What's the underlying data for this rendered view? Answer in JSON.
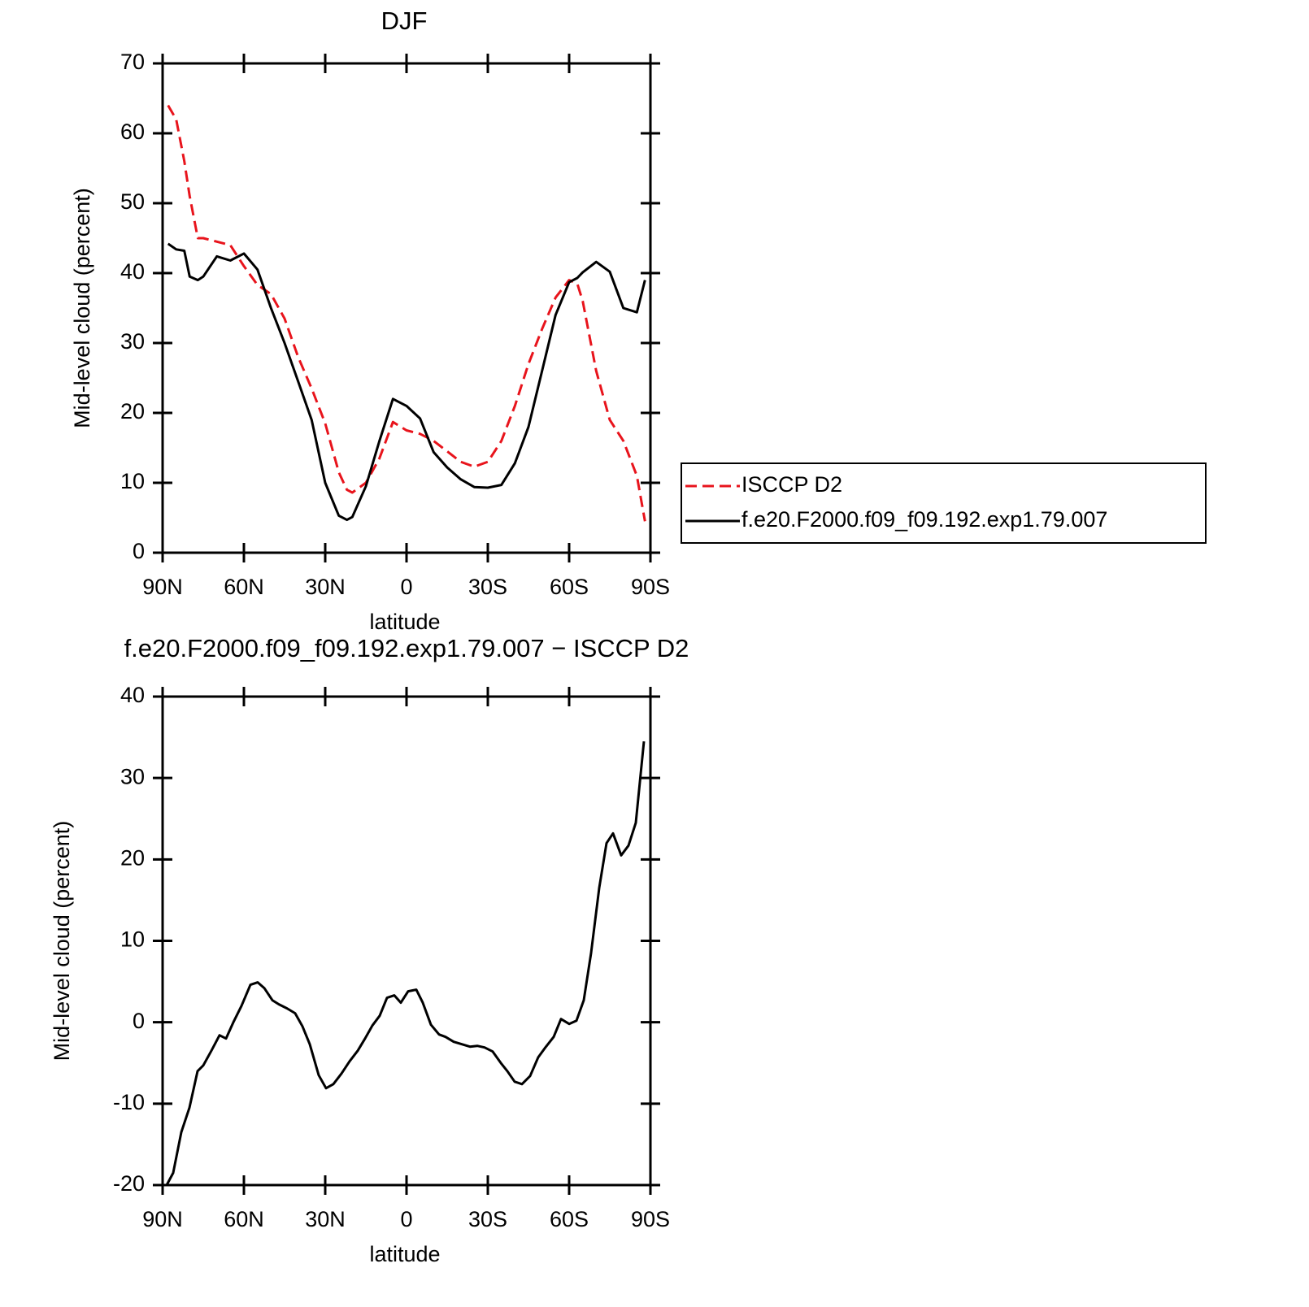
{
  "chart_data": [
    {
      "type": "line",
      "title": "DJF",
      "xlabel": "latitude",
      "ylabel": "Mid-level cloud (percent)",
      "x": [
        88,
        85,
        82,
        80,
        77,
        75,
        70,
        65,
        60,
        55,
        50,
        45,
        40,
        35,
        30,
        25,
        22,
        20,
        15,
        10,
        5,
        0,
        -5,
        -10,
        -15,
        -20,
        -25,
        -30,
        -35,
        -40,
        -45,
        -50,
        -55,
        -60,
        -63,
        -65,
        -70,
        -75,
        -80,
        -85,
        -88
      ],
      "series": [
        {
          "name": "ISCCP D2",
          "color": "#e8141c",
          "linestyle": "dashed",
          "values": [
            64,
            62,
            56,
            51,
            45,
            45,
            44.5,
            44,
            41,
            38.3,
            37,
            33.5,
            28,
            23.5,
            18.5,
            11.5,
            9,
            8.6,
            10,
            13.5,
            18.7,
            17.5,
            17,
            16,
            14.5,
            13,
            12.3,
            13,
            16,
            21,
            27,
            32,
            36.5,
            39,
            38.5,
            36,
            26,
            19,
            16,
            11,
            4.5
          ]
        },
        {
          "name": "f.e20.F2000.f09_f09.192.exp1.79.007",
          "color": "#000000",
          "linestyle": "solid",
          "values": [
            44.2,
            43.4,
            43.2,
            39.5,
            39,
            39.5,
            42.4,
            41.8,
            42.8,
            40.5,
            35,
            30,
            24.5,
            19,
            10,
            5.3,
            4.7,
            5.1,
            9.5,
            16,
            22,
            21,
            19.2,
            14.4,
            12.2,
            10.5,
            9.4,
            9.3,
            9.7,
            12.8,
            18,
            26,
            34,
            38.7,
            39.3,
            40.1,
            41.6,
            40.2,
            35,
            34.4,
            39
          ]
        }
      ],
      "xlim": [
        90,
        -90
      ],
      "xticks": [
        {
          "value": 90,
          "label": "90N"
        },
        {
          "value": 60,
          "label": "60N"
        },
        {
          "value": 30,
          "label": "30N"
        },
        0,
        {
          "value": -30,
          "label": "30S"
        },
        {
          "value": -60,
          "label": "60S"
        },
        {
          "value": -90,
          "label": "90S"
        }
      ],
      "ylim": [
        0,
        70
      ],
      "yticks": [
        0,
        10,
        20,
        30,
        40,
        50,
        60,
        70
      ],
      "legend": "right"
    },
    {
      "type": "line",
      "title": "f.e20.F2000.f09_f09.192.exp1.79.007 − ISCCP D2",
      "xlabel": "latitude",
      "ylabel": "Mid-level cloud (percent)",
      "x": [
        88.5,
        86.1,
        83.1,
        80.1,
        77.1,
        75,
        72,
        69,
        66.6,
        63.9,
        60.9,
        57.6,
        54.9,
        52.5,
        49.5,
        47.1,
        44.1,
        41.1,
        38.4,
        35.7,
        32.4,
        29.7,
        27,
        24,
        21,
        18,
        15.3,
        12.6,
        9.9,
        7.2,
        4.5,
        2.1,
        -0.6,
        -3.6,
        -6,
        -9,
        -12,
        -14.4,
        -17.4,
        -20.4,
        -23.4,
        -26.1,
        -28.8,
        -31.8,
        -34.8,
        -37.2,
        -39.9,
        -42.6,
        -45.6,
        -48.6,
        -51,
        -54.3,
        -57,
        -60,
        -62.7,
        -65.4,
        -68.1,
        -71.1,
        -73.8,
        -76.2,
        -79.2,
        -81.9,
        -84.6,
        -87.6
      ],
      "series": [
        {
          "color": "#000000",
          "linestyle": "solid",
          "values": [
            -20,
            -18.5,
            -13.5,
            -10.5,
            -6,
            -5.3,
            -3.5,
            -1.6,
            -2,
            0,
            2,
            4.6,
            4.9,
            4.2,
            2.7,
            2.2,
            1.7,
            1.1,
            -0.5,
            -2.7,
            -6.5,
            -8.1,
            -7.6,
            -6.3,
            -4.8,
            -3.5,
            -2,
            -0.4,
            0.8,
            3,
            3.3,
            2.4,
            3.8,
            4,
            2.4,
            -0.3,
            -1.5,
            -1.8,
            -2.4,
            -2.7,
            -3,
            -2.9,
            -3.1,
            -3.6,
            -5,
            -6,
            -7.3,
            -7.6,
            -6.6,
            -4.3,
            -3.2,
            -1.8,
            0.4,
            -0.2,
            0.2,
            2.7,
            8.5,
            16.5,
            22,
            23.2,
            20.5,
            21.7,
            24.5,
            34.5
          ]
        }
      ],
      "xlim": [
        90,
        -90
      ],
      "xticks": [
        {
          "value": 90,
          "label": "90N"
        },
        {
          "value": 60,
          "label": "60N"
        },
        {
          "value": 30,
          "label": "30N"
        },
        0,
        {
          "value": -30,
          "label": "30S"
        },
        {
          "value": -60,
          "label": "60S"
        },
        {
          "value": -90,
          "label": "90S"
        }
      ],
      "ylim": [
        -20,
        40
      ],
      "yticks": [
        -20,
        -10,
        0,
        10,
        20,
        30,
        40
      ]
    }
  ]
}
